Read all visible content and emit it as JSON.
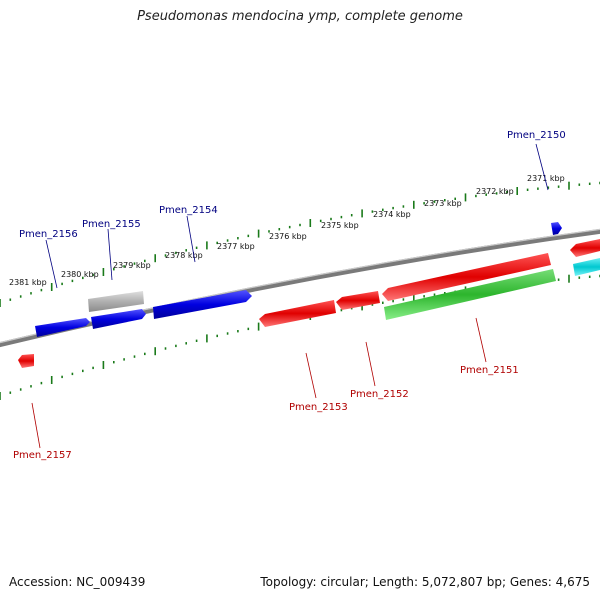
{
  "title": "Pseudomonas mendocina ymp, complete genome",
  "footer": {
    "accession": "Accession: NC_009439",
    "summary": "Topology: circular; Length: 5,072,807 bp; Genes: 4,675"
  },
  "colors": {
    "backbone": "#808080",
    "tick": "#1a7a1a",
    "forward_gene": "#0000e0",
    "reverse_gene": "#e00000",
    "pseudo_gene": "#b0b0b0",
    "rna_gene": "#33bb33",
    "other_gene": "#00c8d0",
    "forward_label": "#000080",
    "reverse_label": "#b00000"
  },
  "kbp_labels": [
    "2371 kbp",
    "2372 kbp",
    "2373 kbp",
    "2374 kbp",
    "2375 kbp",
    "2376 kbp",
    "2377 kbp",
    "2378 kbp",
    "2379 kbp",
    "2380 kbp",
    "2381 kbp"
  ],
  "gene_labels": {
    "forward": [
      "Pmen_2150",
      "Pmen_2154",
      "Pmen_2155",
      "Pmen_2156"
    ],
    "reverse": [
      "Pmen_2151",
      "Pmen_2152",
      "Pmen_2153",
      "Pmen_2157"
    ]
  }
}
